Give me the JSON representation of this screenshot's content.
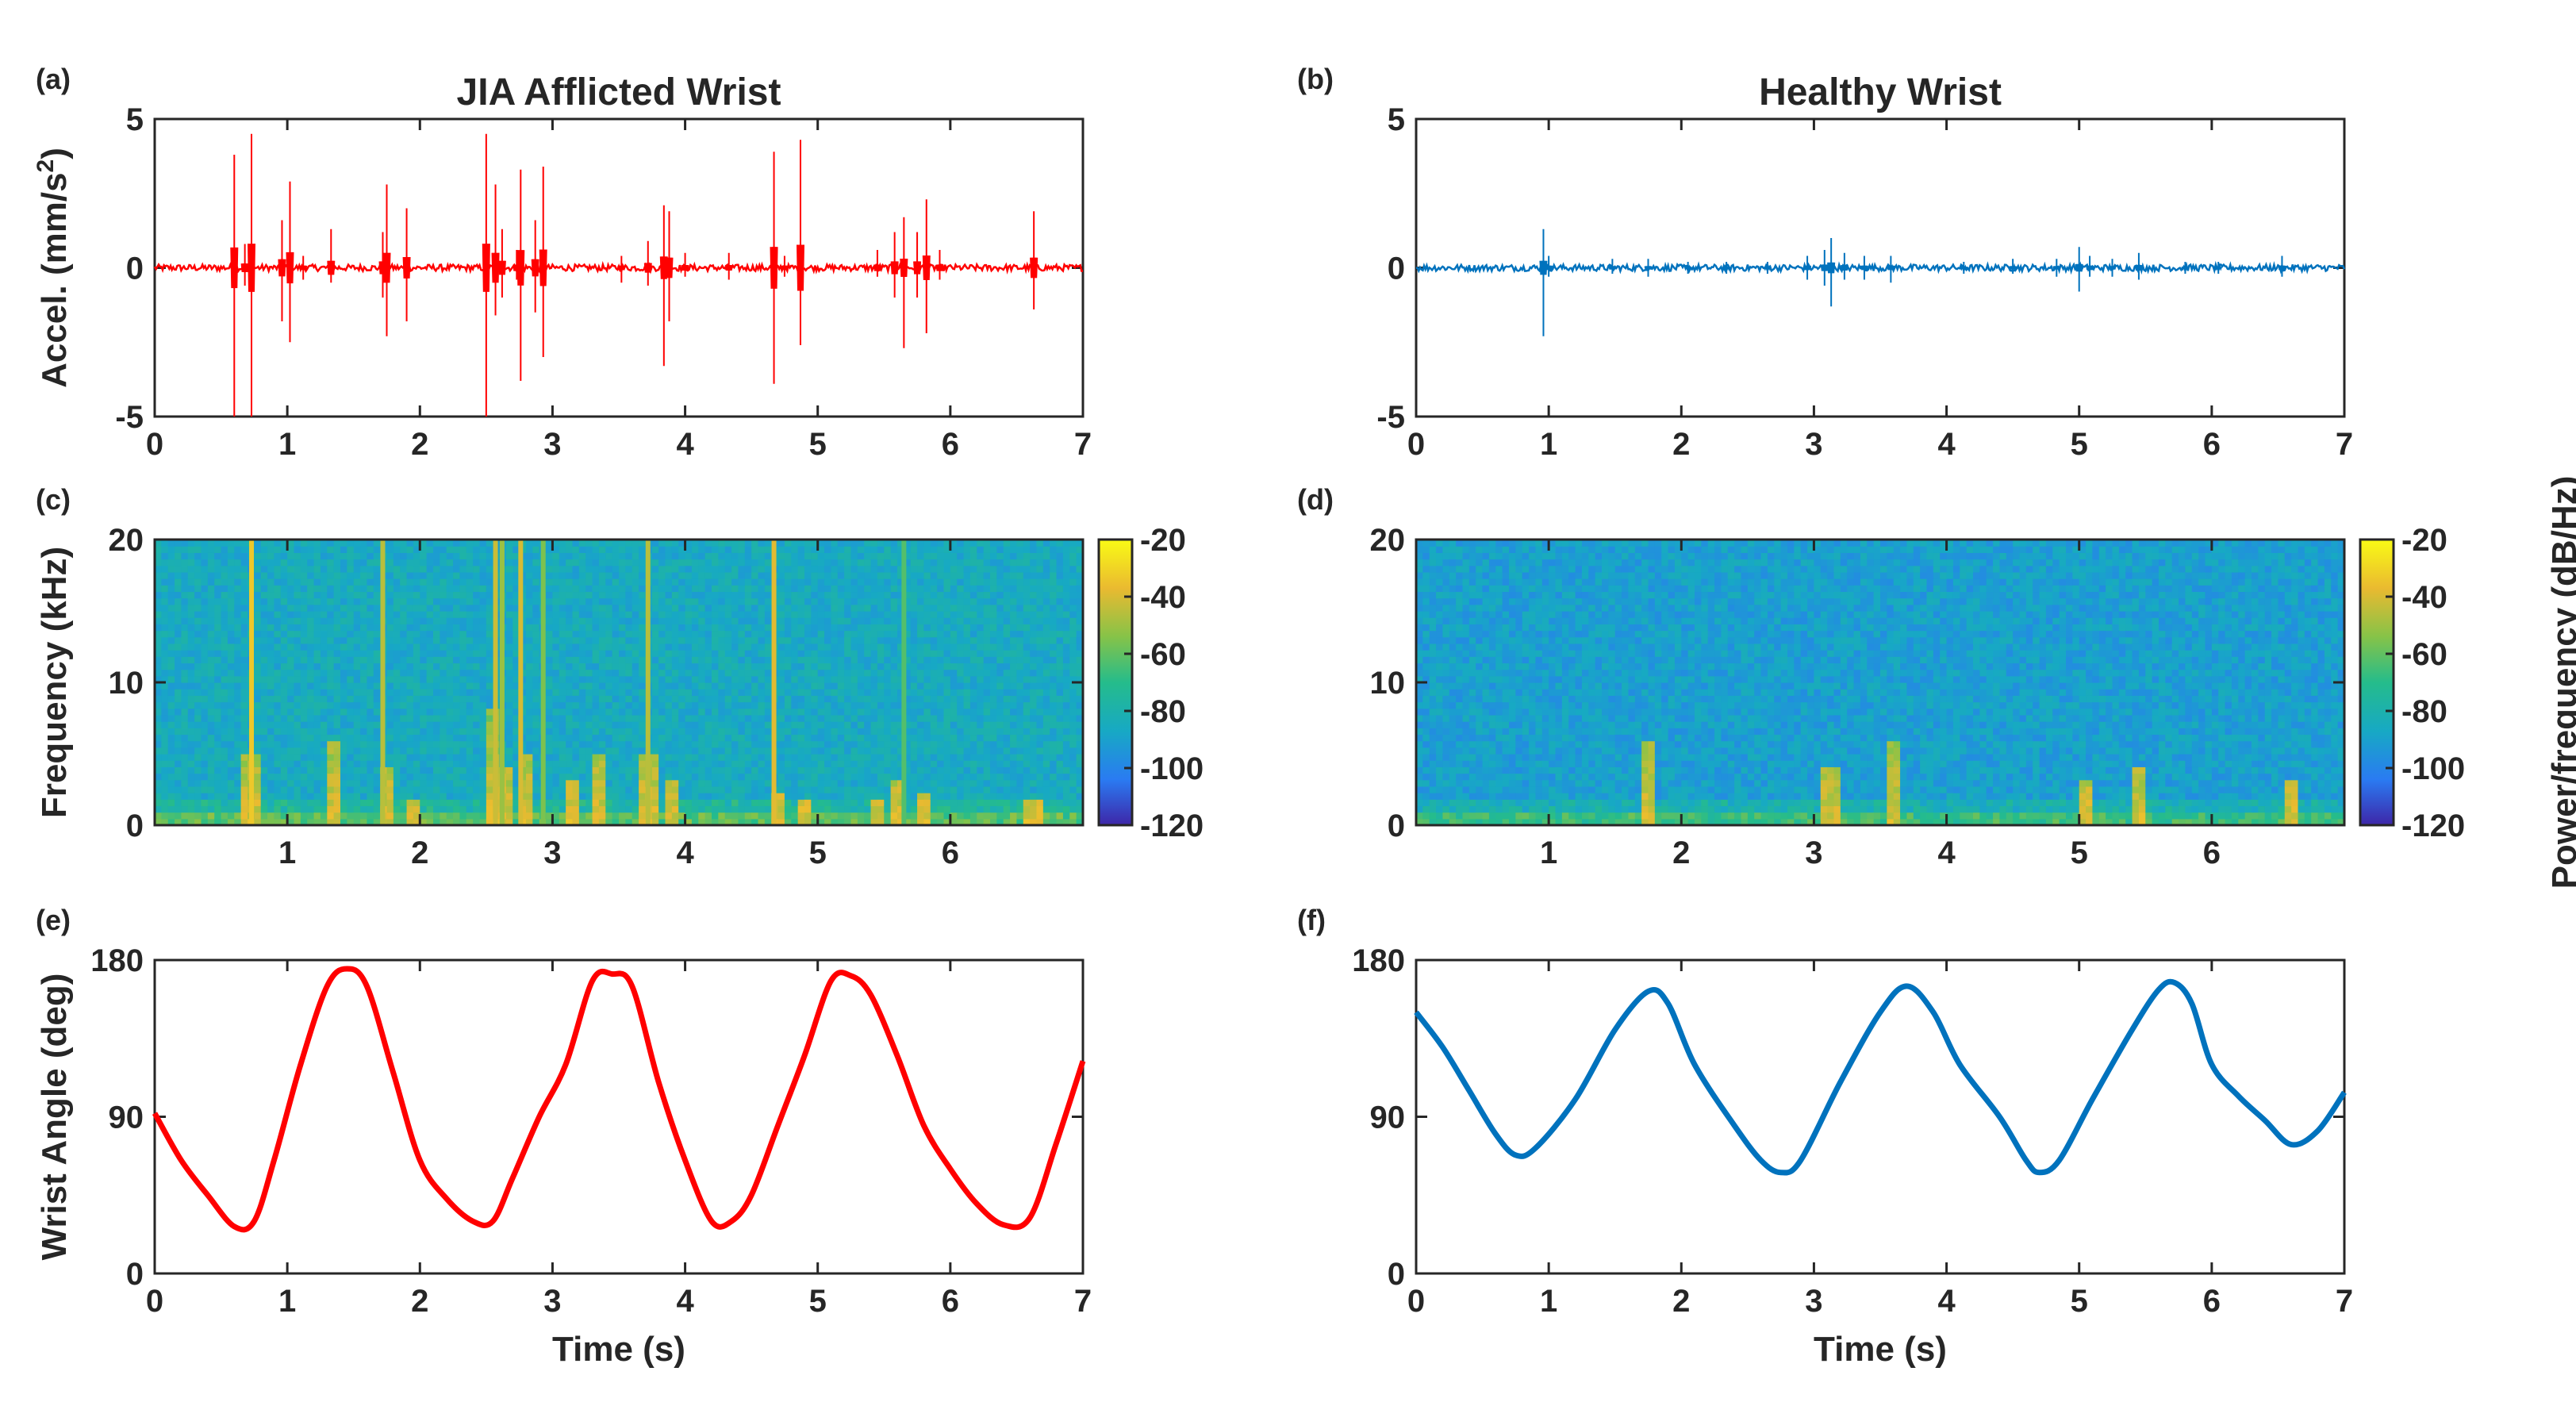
{
  "colors": {
    "jia": "#ff0000",
    "healthy": "#0072bd",
    "axis": "#262626",
    "colormap": [
      "#3e26a8",
      "#2a7bf2",
      "#17a9c4",
      "#25bc8b",
      "#86c348",
      "#eaba30",
      "#f9fb15"
    ]
  },
  "chart_data": [
    {
      "id": "a",
      "panel_label": "(a)",
      "type": "line",
      "title": "JIA Afflicted Wrist",
      "xlabel": "",
      "ylabel": "Accel. (mm/s²)",
      "ylabel_parts": [
        "Accel. (mm/s",
        "2",
        ")"
      ],
      "xlim": [
        0,
        7
      ],
      "ylim": [
        -5,
        5
      ],
      "xticks": [
        0,
        1,
        2,
        3,
        4,
        5,
        6,
        7
      ],
      "yticks": [
        -5,
        0,
        5
      ],
      "series": [
        {
          "color": "#ff0000",
          "spikes": [
            [
              0.6,
              3.8,
              -5.0
            ],
            [
              0.68,
              0.8,
              -0.6
            ],
            [
              0.73,
              4.5,
              -5.0
            ],
            [
              0.96,
              1.6,
              -1.8
            ],
            [
              1.02,
              2.9,
              -2.5
            ],
            [
              1.12,
              0.4,
              -0.4
            ],
            [
              1.33,
              1.3,
              -0.5
            ],
            [
              1.72,
              1.2,
              -1.0
            ],
            [
              1.75,
              2.8,
              -2.3
            ],
            [
              1.9,
              2.0,
              -1.8
            ],
            [
              2.5,
              4.5,
              -5.0
            ],
            [
              2.57,
              2.8,
              -1.6
            ],
            [
              2.62,
              1.3,
              -1.0
            ],
            [
              2.73,
              0.6,
              -0.4
            ],
            [
              2.76,
              3.3,
              -3.8
            ],
            [
              2.87,
              1.6,
              -1.5
            ],
            [
              2.93,
              3.4,
              -3.0
            ],
            [
              3.52,
              0.4,
              -0.5
            ],
            [
              3.72,
              0.9,
              -0.6
            ],
            [
              3.84,
              2.1,
              -3.3
            ],
            [
              3.88,
              1.9,
              -1.8
            ],
            [
              4.0,
              0.5,
              -0.3
            ],
            [
              4.33,
              0.5,
              -0.4
            ],
            [
              4.67,
              3.9,
              -3.9
            ],
            [
              4.75,
              0.4,
              -0.3
            ],
            [
              4.87,
              4.3,
              -2.6
            ],
            [
              5.45,
              0.6,
              -0.3
            ],
            [
              5.58,
              1.2,
              -1.0
            ],
            [
              5.65,
              1.7,
              -2.7
            ],
            [
              5.75,
              1.2,
              -1.0
            ],
            [
              5.82,
              2.3,
              -2.2
            ],
            [
              5.92,
              0.6,
              -0.4
            ],
            [
              6.63,
              1.9,
              -1.4
            ]
          ]
        }
      ]
    },
    {
      "id": "b",
      "panel_label": "(b)",
      "type": "line",
      "title": "Healthy Wrist",
      "xlabel": "",
      "ylabel": "",
      "xlim": [
        0,
        7
      ],
      "ylim": [
        -5,
        5
      ],
      "xticks": [
        0,
        1,
        2,
        3,
        4,
        5,
        6,
        7
      ],
      "yticks": [
        -5,
        0,
        5
      ],
      "series": [
        {
          "color": "#0072bd",
          "spikes": [
            [
              0.96,
              1.3,
              -2.3
            ],
            [
              1.0,
              0.4,
              -0.3
            ],
            [
              1.48,
              0.3,
              -0.2
            ],
            [
              1.75,
              0.3,
              -0.3
            ],
            [
              2.05,
              0.2,
              -0.2
            ],
            [
              2.34,
              0.2,
              -0.2
            ],
            [
              2.65,
              0.2,
              -0.2
            ],
            [
              2.95,
              0.4,
              -0.4
            ],
            [
              3.08,
              0.6,
              -0.6
            ],
            [
              3.13,
              1.0,
              -1.3
            ],
            [
              3.23,
              0.5,
              -0.4
            ],
            [
              3.38,
              0.4,
              -0.4
            ],
            [
              3.58,
              0.4,
              -0.5
            ],
            [
              4.13,
              0.2,
              -0.2
            ],
            [
              4.5,
              0.3,
              -0.2
            ],
            [
              4.83,
              0.3,
              -0.3
            ],
            [
              5.0,
              0.7,
              -0.8
            ],
            [
              5.08,
              0.4,
              -0.3
            ],
            [
              5.25,
              0.3,
              -0.3
            ],
            [
              5.45,
              0.5,
              -0.4
            ],
            [
              5.8,
              0.2,
              -0.2
            ],
            [
              6.05,
              0.2,
              -0.2
            ],
            [
              6.53,
              0.4,
              -0.3
            ]
          ]
        }
      ]
    },
    {
      "id": "c",
      "panel_label": "(c)",
      "type": "heatmap",
      "title": "",
      "xlabel": "",
      "ylabel": "Frequency (kHz)",
      "xlim": [
        0,
        7
      ],
      "ylim": [
        0,
        20
      ],
      "xticks": [
        1,
        2,
        3,
        4,
        5,
        6
      ],
      "yticks": [
        0,
        10,
        20
      ],
      "clim": [
        -120,
        -20
      ],
      "cticks": [
        -120,
        -100,
        -80,
        -60,
        -40,
        -20
      ],
      "background_db": -85,
      "lines": [
        [
          0.73,
          -33
        ],
        [
          1.72,
          -45
        ],
        [
          2.57,
          -42
        ],
        [
          2.62,
          -50
        ],
        [
          2.76,
          -40
        ],
        [
          2.93,
          -55
        ],
        [
          3.72,
          -45
        ],
        [
          4.67,
          -38
        ],
        [
          5.65,
          -62
        ]
      ],
      "low_freq_events": [
        [
          0.73,
          5
        ],
        [
          1.35,
          6
        ],
        [
          1.75,
          4
        ],
        [
          1.95,
          2
        ],
        [
          2.55,
          8
        ],
        [
          2.62,
          4
        ],
        [
          2.8,
          5
        ],
        [
          3.15,
          3
        ],
        [
          3.35,
          5
        ],
        [
          3.72,
          5
        ],
        [
          3.9,
          3
        ],
        [
          4.7,
          2.5
        ],
        [
          4.9,
          2
        ],
        [
          5.45,
          2
        ],
        [
          5.6,
          3
        ],
        [
          5.8,
          2.5
        ],
        [
          6.63,
          2
        ]
      ]
    },
    {
      "id": "d",
      "panel_label": "(d)",
      "type": "heatmap",
      "title": "",
      "xlabel": "",
      "ylabel": "",
      "colorbar_label": "Power/frequency (dB/Hz)",
      "xlim": [
        0,
        7
      ],
      "ylim": [
        0,
        20
      ],
      "xticks": [
        1,
        2,
        3,
        4,
        5,
        6
      ],
      "yticks": [
        0,
        10,
        20
      ],
      "clim": [
        -120,
        -20
      ],
      "cticks": [
        -120,
        -100,
        -80,
        -60,
        -40,
        -20
      ],
      "background_db": -90,
      "lines": [],
      "low_freq_events": [
        [
          1.75,
          6
        ],
        [
          3.13,
          4
        ],
        [
          3.6,
          6
        ],
        [
          5.05,
          3
        ],
        [
          5.45,
          4
        ],
        [
          6.6,
          3
        ]
      ]
    },
    {
      "id": "e",
      "panel_label": "(e)",
      "type": "line",
      "title": "",
      "xlabel": "Time (s)",
      "ylabel": "Wrist Angle (deg)",
      "xlim": [
        0,
        7
      ],
      "ylim": [
        0,
        180
      ],
      "xticks": [
        0,
        1,
        2,
        3,
        4,
        5,
        6,
        7
      ],
      "yticks": [
        0,
        90,
        180
      ],
      "series": [
        {
          "color": "#ff0000",
          "x": [
            0,
            0.2,
            0.4,
            0.6,
            0.75,
            0.9,
            1.1,
            1.3,
            1.45,
            1.6,
            1.8,
            2.0,
            2.2,
            2.4,
            2.55,
            2.7,
            2.9,
            3.1,
            3.3,
            3.45,
            3.6,
            3.8,
            4.0,
            4.2,
            4.35,
            4.5,
            4.7,
            4.9,
            5.1,
            5.25,
            5.4,
            5.6,
            5.8,
            6.0,
            6.2,
            6.4,
            6.6,
            6.8,
            7.0
          ],
          "y": [
            92,
            65,
            45,
            27,
            30,
            65,
            120,
            165,
            175,
            165,
            115,
            65,
            43,
            30,
            30,
            55,
            90,
            120,
            168,
            172,
            165,
            110,
            65,
            30,
            30,
            45,
            85,
            125,
            168,
            171,
            160,
            125,
            85,
            60,
            40,
            28,
            32,
            75,
            122
          ]
        }
      ]
    },
    {
      "id": "f",
      "panel_label": "(f)",
      "type": "line",
      "title": "",
      "xlabel": "Time (s)",
      "ylabel": "",
      "xlim": [
        0,
        7
      ],
      "ylim": [
        0,
        180
      ],
      "xticks": [
        0,
        1,
        2,
        3,
        4,
        5,
        6,
        7
      ],
      "yticks": [
        0,
        90,
        180
      ],
      "series": [
        {
          "color": "#0072bd",
          "x": [
            0,
            0.2,
            0.4,
            0.6,
            0.75,
            0.9,
            1.2,
            1.5,
            1.75,
            1.9,
            2.1,
            2.4,
            2.6,
            2.75,
            2.9,
            3.2,
            3.5,
            3.7,
            3.9,
            4.1,
            4.4,
            4.6,
            4.7,
            4.85,
            5.1,
            5.4,
            5.6,
            5.72,
            5.85,
            6.0,
            6.2,
            6.4,
            6.6,
            6.8,
            7.0
          ],
          "y": [
            150,
            130,
            105,
            80,
            68,
            72,
            100,
            140,
            162,
            155,
            120,
            85,
            65,
            58,
            65,
            110,
            150,
            165,
            150,
            120,
            90,
            65,
            58,
            65,
            100,
            140,
            163,
            167,
            155,
            120,
            102,
            88,
            74,
            82,
            104
          ]
        }
      ]
    }
  ]
}
